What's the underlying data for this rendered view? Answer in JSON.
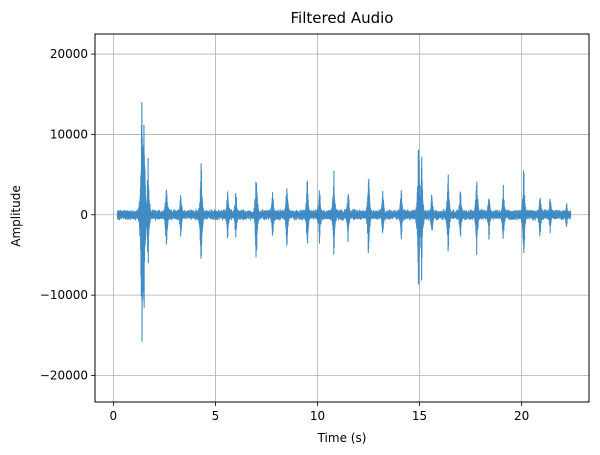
{
  "chart_data": {
    "type": "line",
    "title": "Filtered Audio",
    "xlabel": "Time (s)",
    "ylabel": "Amplitude",
    "xlim": [
      -0.9,
      23.3
    ],
    "ylim": [
      -23300,
      22500
    ],
    "xticks": [
      0,
      5,
      10,
      15,
      20
    ],
    "xtick_labels": [
      "0",
      "5",
      "10",
      "15",
      "20"
    ],
    "yticks": [
      -20000,
      -10000,
      0,
      10000,
      20000
    ],
    "ytick_labels": [
      "−20000",
      "−10000",
      "0",
      "10000",
      "20000"
    ],
    "grid": true,
    "series": [
      {
        "color": "#2e7fbf",
        "x_start": 0.2,
        "x_end": 22.4,
        "noise_amplitude": 700,
        "events": [
          {
            "t": 0.3,
            "amplitude": 700
          },
          {
            "t": 0.6,
            "amplitude": 600
          },
          {
            "t": 1.4,
            "amplitude": 20500
          },
          {
            "t": 1.5,
            "amplitude": 15000
          },
          {
            "t": 1.7,
            "amplitude": 8000
          },
          {
            "t": 2.6,
            "amplitude": 5200
          },
          {
            "t": 3.3,
            "amplitude": 3500
          },
          {
            "t": 4.3,
            "amplitude": 7800
          },
          {
            "t": 5.6,
            "amplitude": 3900
          },
          {
            "t": 6.0,
            "amplitude": 4000
          },
          {
            "t": 7.0,
            "amplitude": 6800
          },
          {
            "t": 7.8,
            "amplitude": 3800
          },
          {
            "t": 8.5,
            "amplitude": 4900
          },
          {
            "t": 9.5,
            "amplitude": 4900
          },
          {
            "t": 10.1,
            "amplitude": 4200
          },
          {
            "t": 10.8,
            "amplitude": 6600
          },
          {
            "t": 11.5,
            "amplitude": 4000
          },
          {
            "t": 12.5,
            "amplitude": 6200
          },
          {
            "t": 13.2,
            "amplitude": 3400
          },
          {
            "t": 14.1,
            "amplitude": 3900
          },
          {
            "t": 14.95,
            "amplitude": 11200
          },
          {
            "t": 15.1,
            "amplitude": 8500
          },
          {
            "t": 15.6,
            "amplitude": 3500
          },
          {
            "t": 16.4,
            "amplitude": 6100
          },
          {
            "t": 17.0,
            "amplitude": 3900
          },
          {
            "t": 17.8,
            "amplitude": 6000
          },
          {
            "t": 18.4,
            "amplitude": 3500
          },
          {
            "t": 19.1,
            "amplitude": 4000
          },
          {
            "t": 20.1,
            "amplitude": 6800
          },
          {
            "t": 20.9,
            "amplitude": 3400
          },
          {
            "t": 21.4,
            "amplitude": 2800
          },
          {
            "t": 22.2,
            "amplitude": 1800
          }
        ]
      }
    ]
  }
}
